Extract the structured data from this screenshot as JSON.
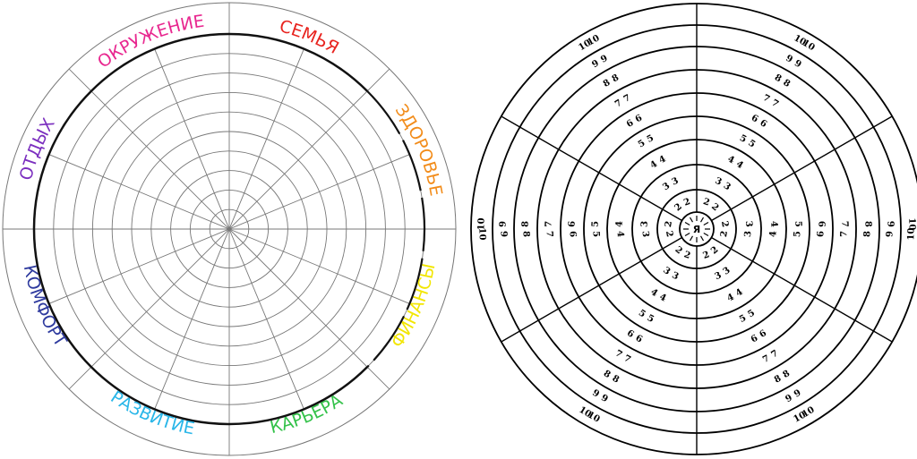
{
  "left_wheel": {
    "categories": [
      {
        "label": "СЕМЬЯ",
        "color": "#e8231e"
      },
      {
        "label": "ЗДОРОВЬЕ",
        "color": "#f28c1a"
      },
      {
        "label": "ФИНАНСЫ",
        "color": "#f2e600"
      },
      {
        "label": "КАРЬЕРА",
        "color": "#34c24a"
      },
      {
        "label": "РАЗВИТИЕ",
        "color": "#29b6e8"
      },
      {
        "label": "КОМФОРТ",
        "color": "#2e3a9e"
      },
      {
        "label": "ОТДЫХ",
        "color": "#7b2fbf"
      },
      {
        "label": "ОКРУЖЕНИЕ",
        "color": "#e8278f"
      }
    ]
  },
  "right_wheel": {
    "center_label": "Я",
    "scale": [
      "2",
      "3",
      "4",
      "5",
      "6",
      "7",
      "8",
      "9",
      "10"
    ]
  }
}
